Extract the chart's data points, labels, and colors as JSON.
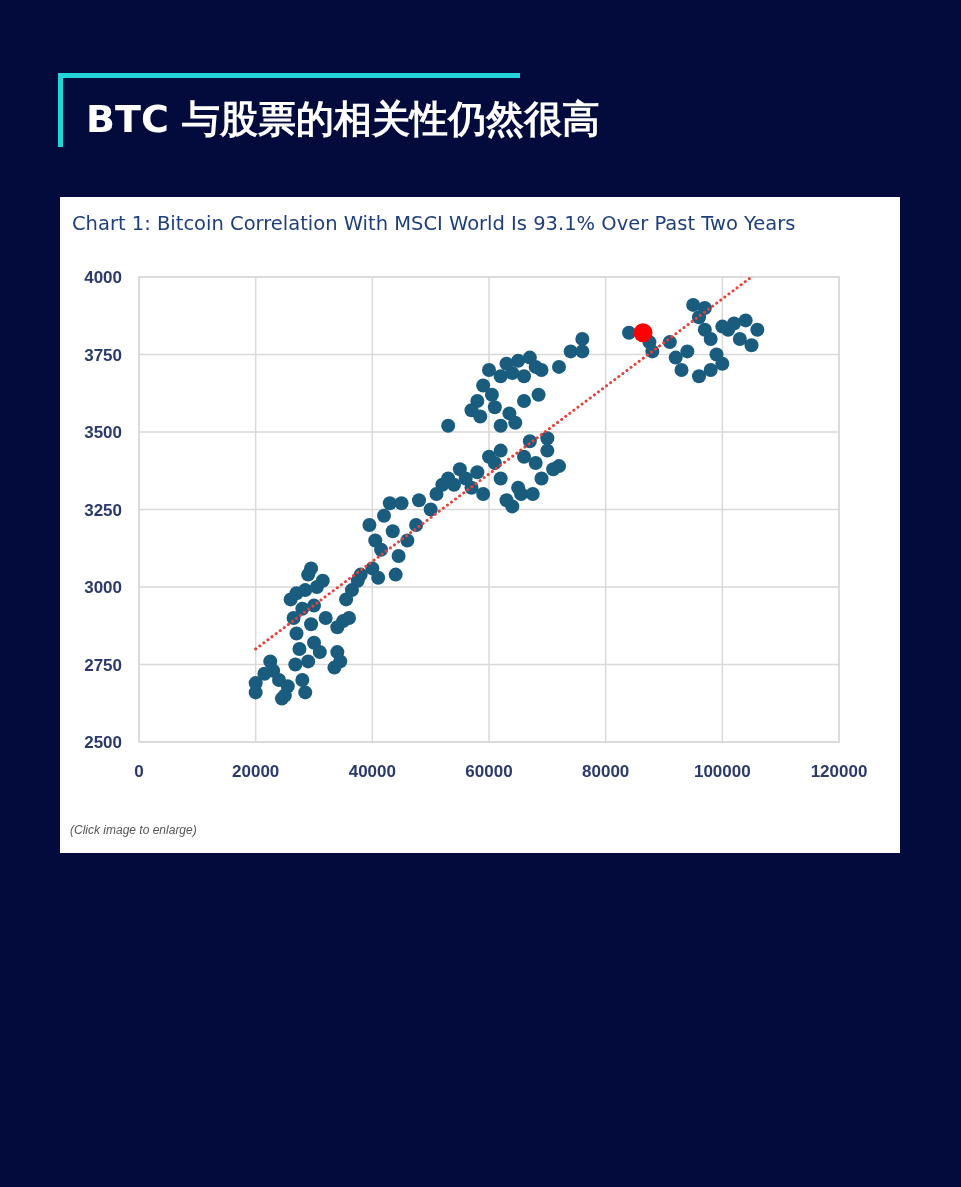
{
  "chart_data": {
    "type": "scatter",
    "title": "BTC 与股票的相关性仍然很高",
    "subtitle": "Chart 1: Bitcoin Correlation With MSCI World Is 93.1% Over Past Two Years",
    "annotations": [
      "(Click image to enlarge)"
    ],
    "xlim": [
      0,
      120000
    ],
    "ylim": [
      2500,
      4000
    ],
    "xticks": [
      0,
      20000,
      40000,
      60000,
      80000,
      100000,
      120000
    ],
    "yticks": [
      2500,
      2750,
      3000,
      3250,
      3500,
      3750,
      4000
    ],
    "grid": true,
    "marker": "circle",
    "series": [
      {
        "color": "#1a5c7e",
        "x": [
          20000,
          20000,
          21500,
          22500,
          23000,
          24000,
          24500,
          25500,
          25000,
          26000,
          26500,
          27000,
          27000,
          27500,
          28000,
          28000,
          28500,
          29000,
          29000,
          29500,
          29500,
          30000,
          30000,
          30500,
          31000,
          31500,
          32000,
          26800,
          28500,
          33500,
          34000,
          34500,
          34000,
          35000,
          36000,
          35500,
          36500,
          37500,
          38000,
          39500,
          40000,
          41000,
          40500,
          41500,
          42000,
          43000,
          43500,
          44000,
          44500,
          45000,
          46000,
          47500,
          48000,
          50000,
          51000,
          52000,
          53000,
          54000,
          55000,
          56000,
          53000,
          57000,
          58000,
          58500,
          59000,
          60000,
          60500,
          61000,
          62000,
          63000,
          64000,
          65000,
          66000,
          67000,
          68000,
          62000,
          63500,
          64500,
          66000,
          68500,
          69000,
          72000,
          74000,
          76000,
          76000,
          57000,
          58000,
          59000,
          60000,
          61000,
          62000,
          63000,
          64000,
          65000,
          66000,
          67000,
          68000,
          69000,
          70000,
          71000,
          72000,
          65500,
          67500,
          70000,
          62000,
          84000,
          87500,
          88000,
          91000,
          92000,
          93000,
          94000,
          95000,
          96000,
          97000,
          98000,
          99000,
          100000,
          101000,
          102000,
          103000,
          104000,
          105000,
          106000,
          96000,
          98000,
          100000,
          97000
        ],
        "values": [
          2690,
          2660,
          2720,
          2760,
          2730,
          2700,
          2640,
          2680,
          2650,
          2960,
          2900,
          2980,
          2850,
          2800,
          2930,
          2700,
          2660,
          2760,
          3040,
          3060,
          2880,
          2940,
          2820,
          3000,
          2790,
          3020,
          2900,
          2750,
          2990,
          2740,
          2790,
          2760,
          2870,
          2890,
          2900,
          2960,
          2990,
          3020,
          3040,
          3200,
          3060,
          3030,
          3150,
          3120,
          3230,
          3270,
          3180,
          3040,
          3100,
          3270,
          3150,
          3200,
          3280,
          3250,
          3300,
          3330,
          3350,
          3330,
          3380,
          3350,
          3520,
          3570,
          3600,
          3550,
          3650,
          3700,
          3620,
          3580,
          3680,
          3720,
          3690,
          3730,
          3680,
          3740,
          3710,
          3520,
          3560,
          3530,
          3600,
          3620,
          3700,
          3710,
          3760,
          3800,
          3760,
          3320,
          3370,
          3300,
          3420,
          3400,
          3350,
          3280,
          3260,
          3320,
          3420,
          3470,
          3400,
          3350,
          3440,
          3380,
          3390,
          3300,
          3300,
          3480,
          3440,
          3820,
          3790,
          3760,
          3790,
          3740,
          3700,
          3760,
          3910,
          3870,
          3830,
          3800,
          3750,
          3840,
          3830,
          3850,
          3800,
          3860,
          3780,
          3830,
          3680,
          3700,
          3720,
          3900
        ]
      },
      {
        "color": "#ff0000",
        "x": [
          86400
        ],
        "values": [
          3820
        ]
      },
      {
        "type": "line",
        "color": "#e8413c",
        "line_style": "dotted",
        "marker": "none",
        "x": [
          20000,
          105000
        ],
        "values": [
          2800,
          4000
        ]
      }
    ]
  }
}
